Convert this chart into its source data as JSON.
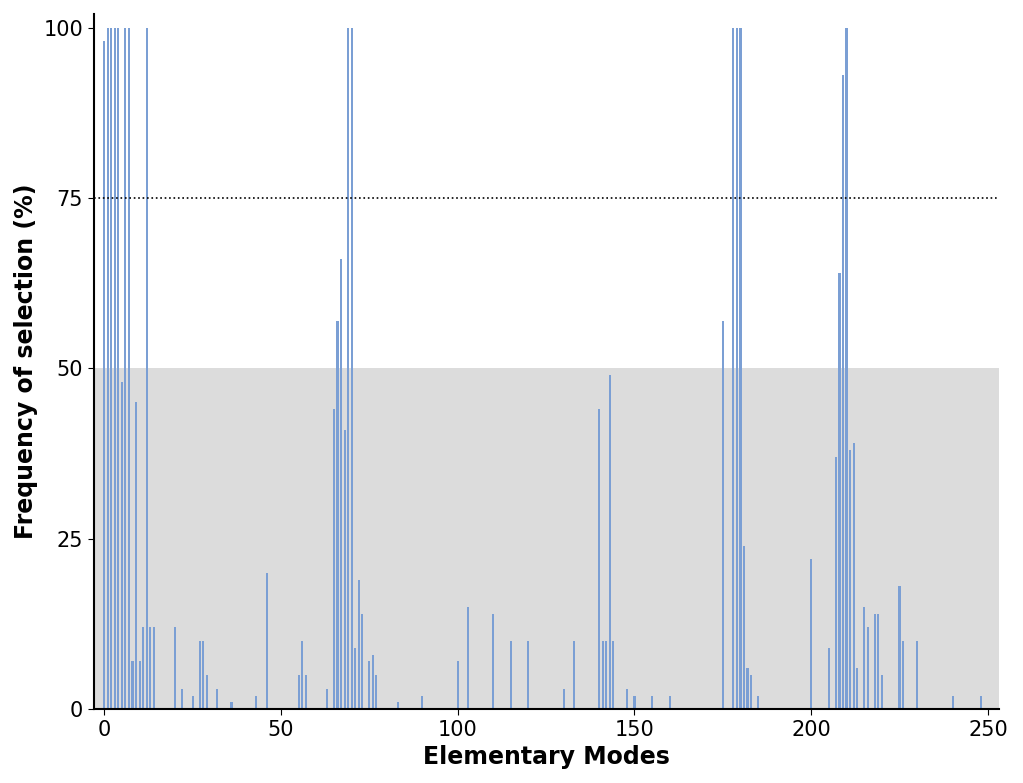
{
  "xlabel": "Elementary Modes",
  "ylabel": "Frequency of selection (%)",
  "xlim": [
    -3,
    253
  ],
  "ylim": [
    0,
    102
  ],
  "xticks": [
    0,
    50,
    100,
    150,
    200,
    250
  ],
  "yticks": [
    0,
    25,
    50,
    75,
    100
  ],
  "dotted_line_y": 75,
  "shaded_region_y": 50,
  "bar_color": "#7B9FD4",
  "background_color": "#ffffff",
  "shade_color": "#DCDCDC",
  "bars": [
    [
      0,
      98
    ],
    [
      1,
      100
    ],
    [
      2,
      100
    ],
    [
      3,
      100
    ],
    [
      4,
      100
    ],
    [
      5,
      48
    ],
    [
      6,
      100
    ],
    [
      7,
      100
    ],
    [
      8,
      7
    ],
    [
      9,
      45
    ],
    [
      10,
      7
    ],
    [
      11,
      12
    ],
    [
      12,
      100
    ],
    [
      13,
      12
    ],
    [
      14,
      12
    ],
    [
      20,
      12
    ],
    [
      22,
      3
    ],
    [
      25,
      2
    ],
    [
      27,
      10
    ],
    [
      28,
      10
    ],
    [
      29,
      5
    ],
    [
      32,
      3
    ],
    [
      36,
      1
    ],
    [
      43,
      2
    ],
    [
      46,
      20
    ],
    [
      55,
      5
    ],
    [
      56,
      10
    ],
    [
      57,
      5
    ],
    [
      63,
      3
    ],
    [
      65,
      44
    ],
    [
      66,
      57
    ],
    [
      67,
      66
    ],
    [
      68,
      41
    ],
    [
      69,
      100
    ],
    [
      70,
      100
    ],
    [
      71,
      9
    ],
    [
      72,
      19
    ],
    [
      73,
      14
    ],
    [
      75,
      7
    ],
    [
      76,
      8
    ],
    [
      77,
      5
    ],
    [
      83,
      1
    ],
    [
      90,
      2
    ],
    [
      100,
      7
    ],
    [
      103,
      15
    ],
    [
      110,
      14
    ],
    [
      115,
      10
    ],
    [
      120,
      10
    ],
    [
      130,
      3
    ],
    [
      133,
      10
    ],
    [
      140,
      44
    ],
    [
      141,
      10
    ],
    [
      142,
      10
    ],
    [
      143,
      49
    ],
    [
      144,
      10
    ],
    [
      148,
      3
    ],
    [
      150,
      2
    ],
    [
      155,
      2
    ],
    [
      160,
      2
    ],
    [
      175,
      57
    ],
    [
      178,
      100
    ],
    [
      179,
      100
    ],
    [
      180,
      100
    ],
    [
      181,
      24
    ],
    [
      182,
      6
    ],
    [
      183,
      5
    ],
    [
      185,
      2
    ],
    [
      200,
      22
    ],
    [
      205,
      9
    ],
    [
      207,
      37
    ],
    [
      208,
      64
    ],
    [
      209,
      93
    ],
    [
      210,
      100
    ],
    [
      211,
      38
    ],
    [
      212,
      39
    ],
    [
      213,
      6
    ],
    [
      215,
      15
    ],
    [
      216,
      12
    ],
    [
      218,
      14
    ],
    [
      219,
      14
    ],
    [
      220,
      5
    ],
    [
      225,
      18
    ],
    [
      226,
      10
    ],
    [
      230,
      10
    ],
    [
      240,
      2
    ],
    [
      248,
      2
    ]
  ]
}
